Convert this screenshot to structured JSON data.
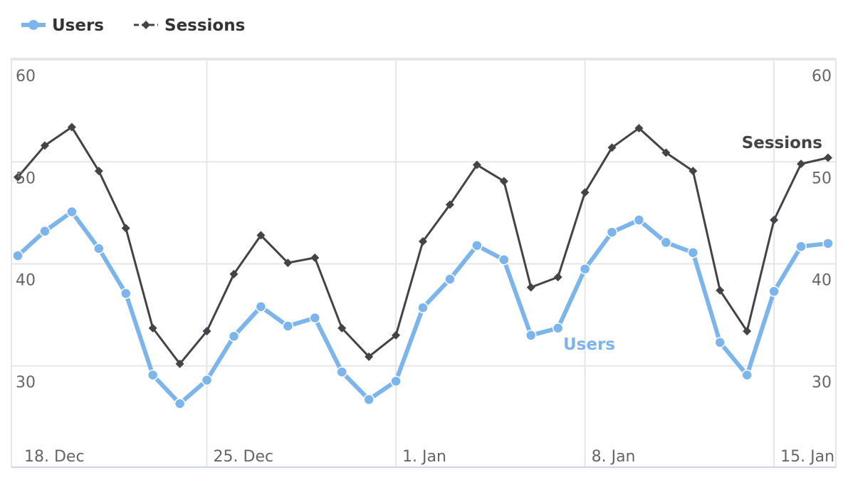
{
  "chart_data": {
    "type": "line",
    "categories": [
      "18. Dec",
      null,
      null,
      null,
      null,
      null,
      null,
      "25. Dec",
      null,
      null,
      null,
      null,
      null,
      null,
      "1. Jan",
      null,
      null,
      null,
      null,
      null,
      null,
      "8. Jan",
      null,
      null,
      null,
      null,
      null,
      null,
      "15. Jan",
      null,
      null
    ],
    "series": [
      {
        "name": "Users",
        "color": "#7cb5ec",
        "marker": "circle",
        "values": [
          40.8,
          43.2,
          45.1,
          41.5,
          37.1,
          29.1,
          26.3,
          28.6,
          32.9,
          35.8,
          33.9,
          34.7,
          29.4,
          26.7,
          28.5,
          35.7,
          38.5,
          41.8,
          40.4,
          33.0,
          33.7,
          39.5,
          43.1,
          44.3,
          42.1,
          41.1,
          32.3,
          29.1,
          37.3,
          41.7,
          42.0
        ]
      },
      {
        "name": "Sessions",
        "color": "#434348",
        "marker": "diamond",
        "values": [
          48.5,
          51.6,
          53.4,
          49.1,
          43.5,
          33.7,
          30.2,
          33.4,
          39.0,
          42.8,
          40.1,
          40.6,
          33.7,
          30.9,
          33.0,
          42.2,
          45.8,
          49.7,
          48.1,
          37.7,
          38.7,
          47.0,
          51.4,
          53.3,
          50.9,
          49.1,
          37.4,
          33.4,
          44.3,
          49.8,
          50.4
        ]
      }
    ],
    "ylim": [
      20,
      60
    ],
    "yticks": [
      30,
      40,
      50,
      60
    ],
    "y2lim": [
      20,
      60
    ],
    "y2ticks": [
      30,
      40,
      50,
      60
    ],
    "grid": true,
    "legend": "top-left"
  }
}
